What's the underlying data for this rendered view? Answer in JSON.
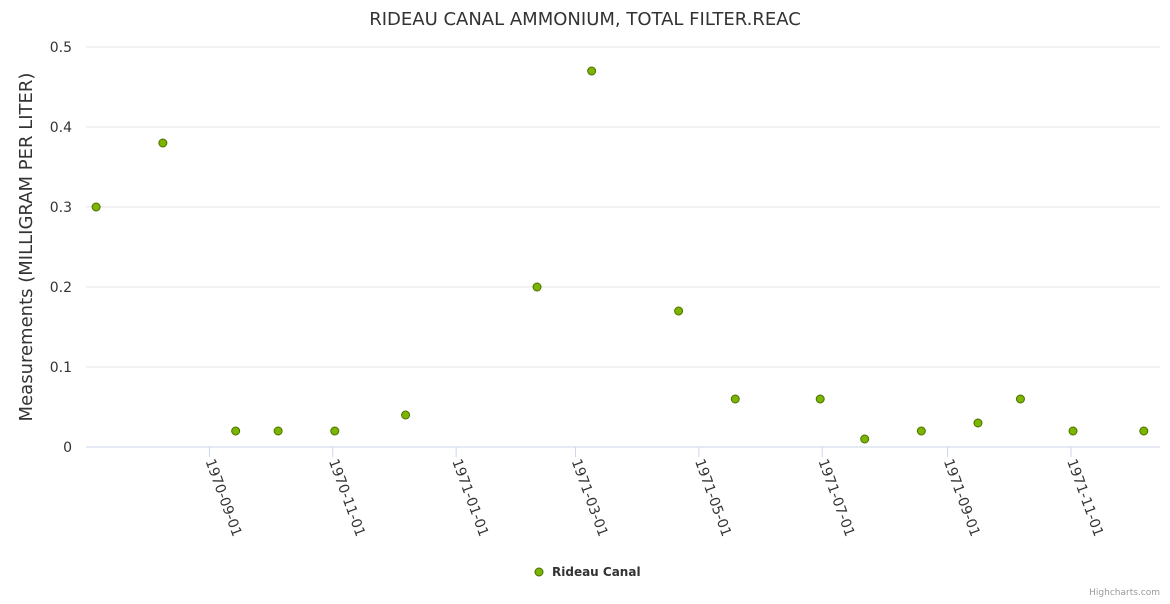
{
  "chart_data": {
    "type": "scatter",
    "title": "RIDEAU CANAL AMMONIUM, TOTAL FILTER.REAC",
    "xlabel": "",
    "ylabel": "Measurements (MILLIGRAM PER LITER)",
    "ylim": [
      0,
      0.5
    ],
    "xlim": [
      "1970-07-02",
      "1971-12-15"
    ],
    "yticks": [
      "0",
      "0.1",
      "0.2",
      "0.3",
      "0.4",
      "0.5"
    ],
    "xticks": [
      "1970-09-01",
      "1970-11-01",
      "1971-01-01",
      "1971-03-01",
      "1971-05-01",
      "1971-07-01",
      "1971-09-01",
      "1971-11-01"
    ],
    "grid": true,
    "legend": "bottom-center",
    "series": [
      {
        "name": "Rideau Canal",
        "color": "#7cb500",
        "x": [
          "1970-07-07",
          "1970-08-09",
          "1970-09-14",
          "1970-10-05",
          "1970-11-02",
          "1970-12-07",
          "1971-02-10",
          "1971-03-09",
          "1971-04-21",
          "1971-05-19",
          "1971-06-30",
          "1971-07-22",
          "1971-08-19",
          "1971-09-16",
          "1971-10-07",
          "1971-11-02",
          "1971-12-07"
        ],
        "values": [
          0.3,
          0.38,
          0.02,
          0.02,
          0.02,
          0.04,
          0.2,
          0.47,
          0.17,
          0.06,
          0.06,
          0.01,
          0.02,
          0.03,
          0.06,
          0.02,
          0.02
        ]
      }
    ],
    "credits": "Highcharts.com"
  }
}
